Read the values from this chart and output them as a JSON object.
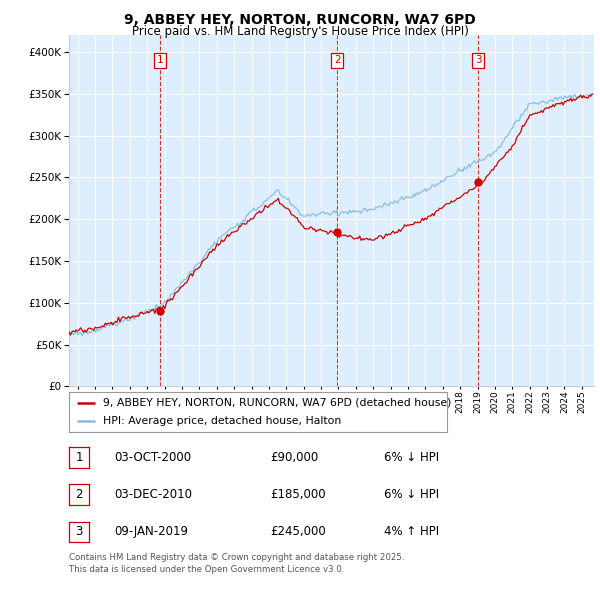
{
  "title": "9, ABBEY HEY, NORTON, RUNCORN, WA7 6PD",
  "subtitle": "Price paid vs. HM Land Registry's House Price Index (HPI)",
  "legend_line1": "9, ABBEY HEY, NORTON, RUNCORN, WA7 6PD (detached house)",
  "legend_line2": "HPI: Average price, detached house, Halton",
  "footer": "Contains HM Land Registry data © Crown copyright and database right 2025.\nThis data is licensed under the Open Government Licence v3.0.",
  "purchases": [
    {
      "num": 1,
      "date": "03-OCT-2000",
      "price": 90000,
      "pct": "6%",
      "dir": "↓"
    },
    {
      "num": 2,
      "date": "03-DEC-2010",
      "price": 185000,
      "pct": "6%",
      "dir": "↓"
    },
    {
      "num": 3,
      "date": "09-JAN-2019",
      "price": 245000,
      "pct": "4%",
      "dir": "↑"
    }
  ],
  "purchase_years": [
    2000.75,
    2010.92,
    2019.03
  ],
  "purchase_prices": [
    90000,
    185000,
    245000
  ],
  "vline_color": "#cc0000",
  "hpi_color": "#88bbdd",
  "price_color": "#cc0000",
  "bg_color": "#ddeeff",
  "grid_color": "#ffffff",
  "ylim": [
    0,
    420000
  ],
  "xlim_start": 1995.5,
  "xlim_end": 2025.7
}
